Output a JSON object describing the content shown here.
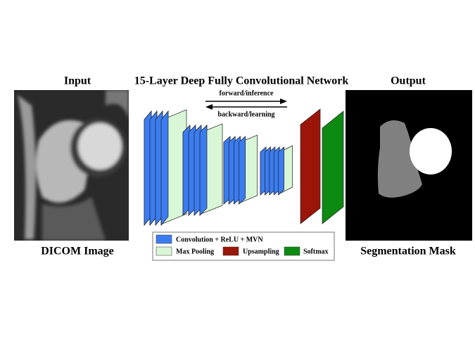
{
  "header": {
    "input": "Input",
    "title": "15-Layer Deep Fully Convolutional Network",
    "output": "Output"
  },
  "arrows": {
    "forward": "forward/inference",
    "backward": "backward/learning"
  },
  "captions": {
    "input": "DICOM Image",
    "output": "Segmentation Mask"
  },
  "legend": [
    {
      "label": "Convolution + ReLU + MVN",
      "color": "#3b7cf0"
    },
    {
      "label": "Max Pooling",
      "color": "#d9f7d6"
    },
    {
      "label": "Upsampling",
      "color": "#9b1508"
    },
    {
      "label": "Softmax",
      "color": "#0c8a12"
    }
  ]
}
